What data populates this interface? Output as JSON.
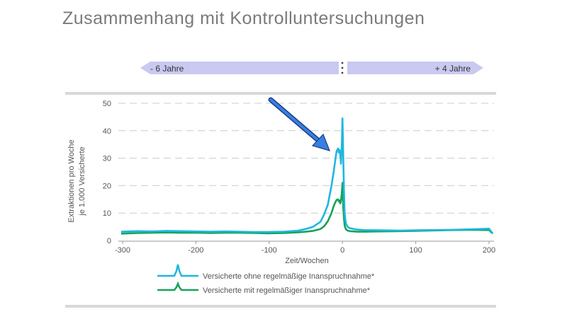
{
  "page": {
    "title": "Zusammenhang mit Kontrolluntersuchungen"
  },
  "timeline": {
    "left_label": "- 6 Jahre",
    "right_label": "+ 4 Jahre"
  },
  "colors": {
    "series_ohne": "#1fb6e0",
    "series_mit": "#16a35a",
    "timeline_fill": "#c9c9f1",
    "gridline": "#cccccc",
    "separator": "#d8d8d8",
    "arrow": "#2f6fd0"
  },
  "chart_data": {
    "type": "line",
    "title": "",
    "xlabel": "Zeit/Wochen",
    "ylabel_lines": [
      "Extraktionen pro Woche",
      "je 1.000 Versicherte"
    ],
    "xlim": [
      -302,
      205
    ],
    "ylim": [
      0,
      50
    ],
    "xticks": [
      -300,
      -200,
      -100,
      0,
      100,
      200
    ],
    "yticks": [
      0,
      10,
      20,
      30,
      40,
      50
    ],
    "grid": "horizontal dashed",
    "legend_position": "bottom",
    "annotation": "arrow pointing to peak near week -5",
    "series": [
      {
        "name": "Versicherte ohne regelmäßige Inanspruchnahme*",
        "color": "#1fb6e0",
        "x": [
          -302,
          -280,
          -260,
          -240,
          -220,
          -200,
          -180,
          -160,
          -140,
          -120,
          -100,
          -80,
          -60,
          -50,
          -40,
          -30,
          -25,
          -20,
          -15,
          -12,
          -10,
          -8,
          -6,
          -5,
          -4,
          -3,
          -2,
          -1,
          0,
          1,
          2,
          3,
          4,
          5,
          7,
          10,
          15,
          20,
          30,
          50,
          80,
          100,
          120,
          150,
          180,
          200,
          205
        ],
        "y": [
          3.2,
          3.4,
          3.3,
          3.5,
          3.4,
          3.3,
          3.2,
          3.3,
          3.2,
          3.1,
          3.1,
          3.2,
          3.6,
          4.2,
          5.0,
          6.8,
          9.5,
          13.0,
          20.0,
          25.0,
          29.0,
          32.5,
          33.5,
          32.0,
          33.0,
          31.5,
          28.0,
          34.0,
          44.5,
          32.0,
          18.0,
          10.0,
          7.5,
          6.0,
          5.0,
          4.5,
          4.2,
          4.0,
          3.8,
          3.7,
          3.6,
          3.7,
          3.8,
          3.9,
          4.1,
          4.3,
          2.5
        ]
      },
      {
        "name": "Versicherte mit regelmäßiger Inanspruchnahme*",
        "color": "#16a35a",
        "x": [
          -302,
          -280,
          -260,
          -240,
          -220,
          -200,
          -180,
          -160,
          -140,
          -120,
          -100,
          -80,
          -60,
          -50,
          -40,
          -30,
          -25,
          -20,
          -15,
          -12,
          -10,
          -8,
          -6,
          -5,
          -4,
          -3,
          -2,
          -1,
          0,
          1,
          2,
          3,
          4,
          5,
          7,
          10,
          15,
          20,
          30,
          50,
          80,
          100,
          120,
          150,
          180,
          200,
          205
        ],
        "y": [
          2.5,
          2.7,
          2.8,
          2.9,
          2.8,
          2.8,
          2.7,
          2.8,
          2.8,
          2.7,
          2.6,
          2.7,
          3.0,
          3.2,
          3.5,
          4.2,
          5.2,
          7.0,
          10.0,
          12.5,
          13.8,
          14.8,
          15.0,
          14.2,
          14.6,
          13.5,
          14.5,
          17.0,
          21.0,
          12.5,
          8.0,
          5.5,
          4.5,
          4.0,
          3.6,
          3.4,
          3.3,
          3.2,
          3.2,
          3.3,
          3.4,
          3.5,
          3.6,
          3.8,
          3.9,
          3.8,
          2.5
        ]
      }
    ]
  }
}
